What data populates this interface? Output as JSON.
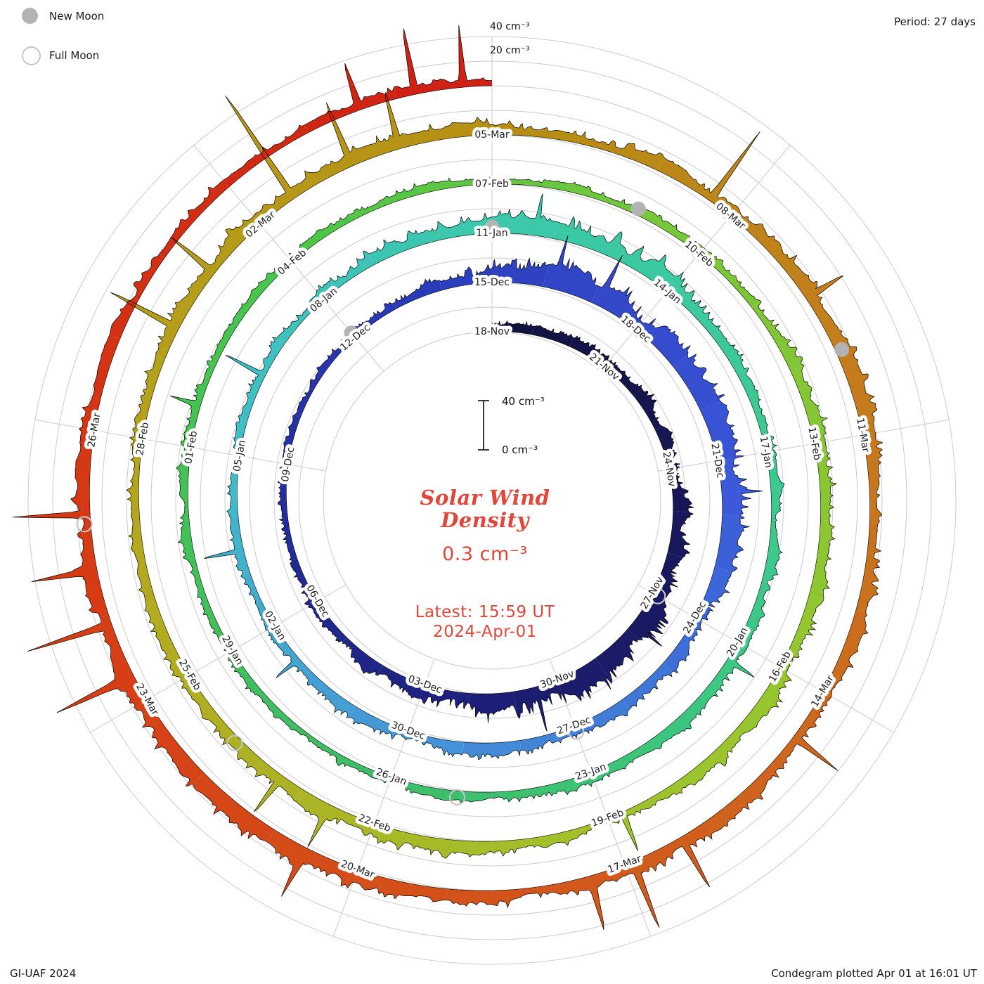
{
  "meta": {
    "period_label": "Period: 27 days",
    "credit": "GI-UAF 2024",
    "plotted_label": "Condegram plotted Apr 01 at 16:01 UT"
  },
  "legend": {
    "new_moon_label": "New Moon",
    "full_moon_label": "Full Moon",
    "new_moon_color": "#b3b3b3",
    "full_moon_ring_color": "#c6c6c6"
  },
  "center": {
    "title_line1": "Solar Wind",
    "title_line2": "Density",
    "latest_value": "0.3 cm⁻³",
    "latest_time": "Latest: 15:59 UT",
    "latest_date": "2024-Apr-01",
    "color": "#e2453a"
  },
  "scale": {
    "outer_ring_label": "40 cm⁻³",
    "inner_ring_label": "20 cm⁻³",
    "bar_top_label": "40 cm⁻³",
    "bar_bottom_label": "0 cm⁻³"
  },
  "chart_data": {
    "type": "area",
    "variant": "condegram spiral: polar time series, 27 days per revolution, time runs clockwise and outward",
    "quantity": "Solar wind density",
    "unit": "cm⁻³",
    "period_days": 27,
    "total_days": 135,
    "start_date": "2023-Nov-18",
    "end_date": "2024-Apr-01",
    "latest_value_cm3": 0.3,
    "radial_scale": {
      "cm3_per_turn": 40,
      "ring_step_cm3": 20
    },
    "colors": {
      "grid": "#cbcbcb",
      "curve": "#000000",
      "baseline": "#000000"
    },
    "date_labels": [
      {
        "label": "18-Nov",
        "day": 0
      },
      {
        "label": "21-Nov",
        "day": 3
      },
      {
        "label": "24-Nov",
        "day": 6
      },
      {
        "label": "27-Nov",
        "day": 9
      },
      {
        "label": "30-Nov",
        "day": 12
      },
      {
        "label": "03-Dec",
        "day": 15
      },
      {
        "label": "06-Dec",
        "day": 18
      },
      {
        "label": "09-Dec",
        "day": 21
      },
      {
        "label": "12-Dec",
        "day": 24
      },
      {
        "label": "15-Dec",
        "day": 27
      },
      {
        "label": "18-Dec",
        "day": 30
      },
      {
        "label": "21-Dec",
        "day": 33
      },
      {
        "label": "24-Dec",
        "day": 36
      },
      {
        "label": "27-Dec",
        "day": 39
      },
      {
        "label": "30-Dec",
        "day": 42
      },
      {
        "label": "02-Jan",
        "day": 45
      },
      {
        "label": "05-Jan",
        "day": 48
      },
      {
        "label": "08-Jan",
        "day": 51
      },
      {
        "label": "11-Jan",
        "day": 54
      },
      {
        "label": "14-Jan",
        "day": 57
      },
      {
        "label": "17-Jan",
        "day": 60
      },
      {
        "label": "20-Jan",
        "day": 63
      },
      {
        "label": "23-Jan",
        "day": 66
      },
      {
        "label": "26-Jan",
        "day": 69
      },
      {
        "label": "29-Jan",
        "day": 72
      },
      {
        "label": "01-Feb",
        "day": 75
      },
      {
        "label": "04-Feb",
        "day": 78
      },
      {
        "label": "07-Feb",
        "day": 81
      },
      {
        "label": "10-Feb",
        "day": 84
      },
      {
        "label": "13-Feb",
        "day": 87
      },
      {
        "label": "16-Feb",
        "day": 90
      },
      {
        "label": "19-Feb",
        "day": 93
      },
      {
        "label": "22-Feb",
        "day": 96
      },
      {
        "label": "25-Feb",
        "day": 99
      },
      {
        "label": "28-Feb",
        "day": 102
      },
      {
        "label": "02-Mar",
        "day": 105
      },
      {
        "label": "05-Mar",
        "day": 108
      },
      {
        "label": "08-Mar",
        "day": 111
      },
      {
        "label": "11-Mar",
        "day": 114
      },
      {
        "label": "14-Mar",
        "day": 117
      },
      {
        "label": "17-Mar",
        "day": 120
      },
      {
        "label": "20-Mar",
        "day": 123
      },
      {
        "label": "23-Mar",
        "day": 126
      },
      {
        "label": "26-Mar",
        "day": 129
      }
    ],
    "color_stops": [
      [
        0,
        "#12123e"
      ],
      [
        12,
        "#1c1c6e"
      ],
      [
        24,
        "#2736b4"
      ],
      [
        33,
        "#3a55d8"
      ],
      [
        42,
        "#4596d8"
      ],
      [
        48,
        "#40bdc8"
      ],
      [
        54,
        "#3bc9ab"
      ],
      [
        62,
        "#3cc98a"
      ],
      [
        70,
        "#3dbd63"
      ],
      [
        78,
        "#49c64a"
      ],
      [
        84,
        "#7ac737"
      ],
      [
        92,
        "#9ec52c"
      ],
      [
        100,
        "#b3aa1f"
      ],
      [
        108,
        "#b78f13"
      ],
      [
        114,
        "#c67a1e"
      ],
      [
        120,
        "#d25a1c"
      ],
      [
        127,
        "#d63d14"
      ],
      [
        135,
        "#d02014"
      ]
    ],
    "moons": {
      "new_moon": [
        {
          "date": "12-Dec",
          "day": 24
        },
        {
          "date": "11-Jan",
          "day": 54
        },
        {
          "date": "09-Feb",
          "day": 83
        },
        {
          "date": "10-Mar",
          "day": 113
        }
      ],
      "full_moon": [
        {
          "date": "27-Nov",
          "day": 9
        },
        {
          "date": "27-Dec",
          "day": 39
        },
        {
          "date": "25-Jan",
          "day": 68
        },
        {
          "date": "24-Feb",
          "day": 98
        },
        {
          "date": "25-Mar",
          "day": 128
        }
      ]
    },
    "approx_3day_mean_density_cm3": [
      [
        0,
        7
      ],
      [
        3,
        9
      ],
      [
        6,
        12
      ],
      [
        9,
        19
      ],
      [
        12,
        23
      ],
      [
        15,
        14
      ],
      [
        18,
        8
      ],
      [
        21,
        6
      ],
      [
        24,
        7
      ],
      [
        26,
        10
      ],
      [
        28,
        24
      ],
      [
        30,
        19
      ],
      [
        33,
        20
      ],
      [
        36,
        14
      ],
      [
        39,
        9
      ],
      [
        42,
        11
      ],
      [
        45,
        8
      ],
      [
        48,
        7
      ],
      [
        51,
        9
      ],
      [
        54,
        17
      ],
      [
        56,
        22
      ],
      [
        58,
        11
      ],
      [
        60,
        9
      ],
      [
        63,
        12
      ],
      [
        66,
        9
      ],
      [
        69,
        8
      ],
      [
        72,
        7
      ],
      [
        75,
        9
      ],
      [
        78,
        8
      ],
      [
        81,
        7
      ],
      [
        84,
        9
      ],
      [
        87,
        12
      ],
      [
        90,
        13
      ],
      [
        93,
        9
      ],
      [
        96,
        14
      ],
      [
        99,
        10
      ],
      [
        102,
        9
      ],
      [
        105,
        12
      ],
      [
        108,
        11
      ],
      [
        111,
        14
      ],
      [
        114,
        13
      ],
      [
        117,
        11
      ],
      [
        120,
        13
      ],
      [
        123,
        15
      ],
      [
        126,
        16
      ],
      [
        129,
        11
      ],
      [
        132,
        9
      ],
      [
        134,
        12
      ],
      [
        135,
        8
      ]
    ],
    "spike_events_day_peak": [
      [
        9.8,
        20
      ],
      [
        12.5,
        26
      ],
      [
        28.2,
        22
      ],
      [
        29.1,
        28
      ],
      [
        33.6,
        18
      ],
      [
        44.3,
        24
      ],
      [
        46.4,
        30
      ],
      [
        49.4,
        36
      ],
      [
        54.7,
        24
      ],
      [
        63.3,
        18
      ],
      [
        75.6,
        20
      ],
      [
        92.8,
        32
      ],
      [
        96.6,
        28
      ],
      [
        97.3,
        34
      ],
      [
        103.4,
        62
      ],
      [
        104.2,
        44
      ],
      [
        105.5,
        108
      ],
      [
        106.3,
        52
      ],
      [
        106.9,
        40
      ],
      [
        110.7,
        64
      ],
      [
        112.3,
        30
      ],
      [
        117.6,
        40
      ],
      [
        119.3,
        44
      ],
      [
        119.9,
        56
      ],
      [
        120.4,
        38
      ],
      [
        123.6,
        30
      ],
      [
        126.3,
        50
      ],
      [
        126.9,
        64
      ],
      [
        127.5,
        42
      ],
      [
        128.1,
        56
      ],
      [
        133.6,
        40
      ],
      [
        134.2,
        55
      ],
      [
        134.7,
        46
      ]
    ]
  }
}
